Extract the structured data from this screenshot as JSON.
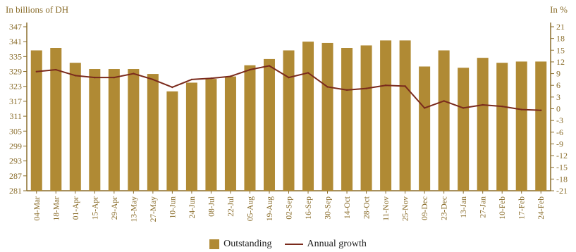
{
  "chart_data": {
    "type": "bar",
    "left_axis_unit": "In billions of DH",
    "right_axis_unit": "In %",
    "categories": [
      "04-Mar",
      "18-Mar",
      "01-Apr",
      "15-Apr",
      "29-Apr",
      "13-May",
      "27-May",
      "10-Jun",
      "24-Jun",
      "08-Jul",
      "22-Jul",
      "05-Aug",
      "19-Aug",
      "02-Sep",
      "16-Sep",
      "30-Sep",
      "14-Oct",
      "28-Oct",
      "11-Nov",
      "25-Nov",
      "09-Dec",
      "23-Dec",
      "13-Jan",
      "27-Jan",
      "10-Feb",
      "17-Feb",
      "24-Feb"
    ],
    "series": [
      {
        "name": "Outstanding",
        "type": "bar",
        "axis": "left",
        "color": "#b08a34",
        "values": [
          337.5,
          338.5,
          332.5,
          330,
          330,
          330,
          328,
          321,
          324.5,
          326,
          327,
          331.5,
          334,
          337.5,
          341,
          340.5,
          338.5,
          339.5,
          341.5,
          341.5,
          331,
          337.5,
          330.5,
          334.5,
          332.5,
          333,
          333
        ]
      },
      {
        "name": "Annual growth",
        "type": "line",
        "axis": "right",
        "color": "#7a2a1c",
        "values": [
          9.5,
          10,
          8.5,
          8,
          8,
          9,
          7.5,
          5.5,
          7.5,
          7.8,
          8.3,
          10,
          11,
          8,
          9.2,
          5.6,
          4.8,
          5.2,
          6,
          5.8,
          0.2,
          2,
          0.2,
          1,
          0.6,
          -0.2,
          -0.4
        ]
      }
    ],
    "y_left": {
      "min": 281,
      "max": 347,
      "step": 6,
      "ticks": [
        "281",
        "287",
        "293",
        "299",
        "305",
        "311",
        "317",
        "323",
        "329",
        "335",
        "341",
        "347"
      ]
    },
    "y_right": {
      "min": -21,
      "max": 21,
      "step": 3,
      "ticks": [
        "-21",
        "-18",
        "-15",
        "-12",
        "-9",
        "-6",
        "-3",
        "0",
        "3",
        "6",
        "9",
        "12",
        "15",
        "18",
        "21"
      ]
    },
    "grid": false,
    "legend_position": "bottom-center"
  }
}
